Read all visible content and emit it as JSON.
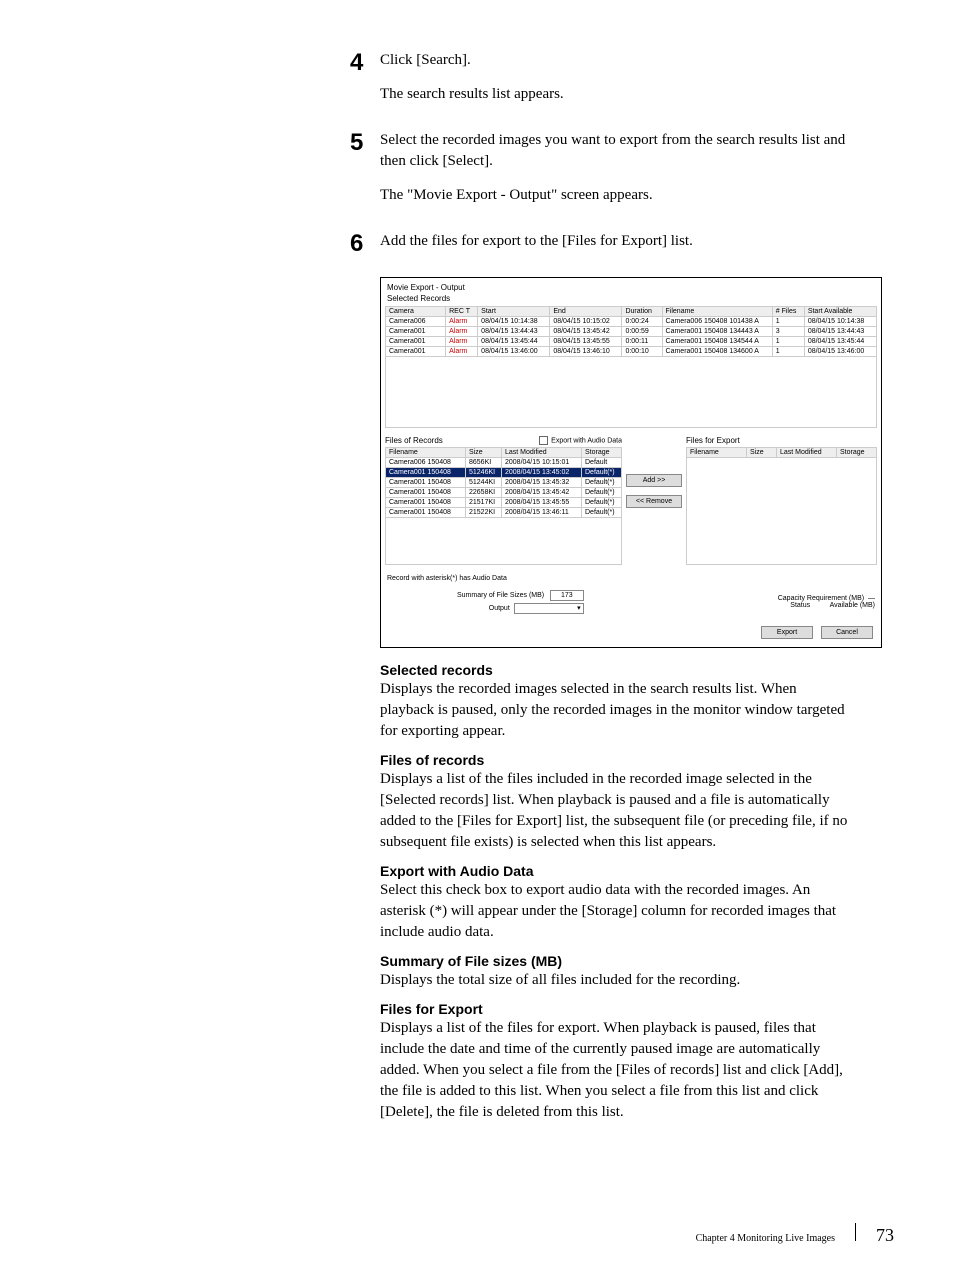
{
  "steps": {
    "s4": {
      "num": "4",
      "line1": "Click [Search].",
      "line2": "The search results list appears."
    },
    "s5": {
      "num": "5",
      "line1": "Select the recorded images you want to export from the search results list and then click [Select].",
      "line2": "The \"Movie Export - Output\" screen appears."
    },
    "s6": {
      "num": "6",
      "line1": "Add the files for export to the [Files for Export] list."
    }
  },
  "screenshot": {
    "window_title": "Movie Export - Output",
    "selected_records_label": "Selected Records",
    "top_headers": [
      "Camera",
      "REC T",
      "Start",
      "End",
      "Duration",
      "Filename",
      "# Files",
      "Start Available"
    ],
    "top_rows": [
      [
        "Camera006",
        "Alarm",
        "08/04/15 10:14:38",
        "08/04/15 10:15:02",
        "0:00:24",
        "Camera006 150408 101438 A",
        "1",
        "08/04/15 10:14:38"
      ],
      [
        "Camera001",
        "Alarm",
        "08/04/15 13:44:43",
        "08/04/15 13:45:42",
        "0:00:59",
        "Camera001 150408 134443 A",
        "3",
        "08/04/15 13:44:43"
      ],
      [
        "Camera001",
        "Alarm",
        "08/04/15 13:45:44",
        "08/04/15 13:45:55",
        "0:00:11",
        "Camera001 150408 134544 A",
        "1",
        "08/04/15 13:45:44"
      ],
      [
        "Camera001",
        "Alarm",
        "08/04/15 13:46:00",
        "08/04/15 13:46:10",
        "0:00:10",
        "Camera001 150408 134600 A",
        "1",
        "08/04/15 13:46:00"
      ]
    ],
    "files_of_records_label": "Files of Records",
    "export_audio_label": "Export with Audio Data",
    "files_for_export_label": "Files for Export",
    "left_headers": [
      "Filename",
      "Size",
      "Last Modified",
      "Storage"
    ],
    "left_rows": [
      [
        "Camera006 150408",
        "8656KI",
        "2008/04/15 10:15:01",
        "Default"
      ],
      [
        "Camera001 150408",
        "51246KI",
        "2008/04/15 13:45:02",
        "Default(*)"
      ],
      [
        "Camera001 150408",
        "51244KI",
        "2008/04/15 13:45:32",
        "Default(*)"
      ],
      [
        "Camera001 150408",
        "22658KI",
        "2008/04/15 13:45:42",
        "Default(*)"
      ],
      [
        "Camera001 150408",
        "21517KI",
        "2008/04/15 13:45:55",
        "Default(*)"
      ],
      [
        "Camera001 150408",
        "21522KI",
        "2008/04/15 13:46:11",
        "Default(*)"
      ]
    ],
    "selected_left_row_index": 1,
    "right_headers": [
      "Filename",
      "Size",
      "Last Modified",
      "Storage"
    ],
    "add_btn": "Add >>",
    "remove_btn": "<< Remove",
    "asterisk_note": "Record with asterisk(*) has Audio Data",
    "summary_label": "Summary of File Sizes (MB)",
    "summary_value": "173",
    "output_label": "Output",
    "status_label": "Status",
    "capacity_label": "Capacity Requirement (MB)",
    "capacity_value": "—",
    "available_label": "Available (MB)",
    "export_btn": "Export",
    "cancel_btn": "Cancel"
  },
  "descriptions": {
    "d1": {
      "title": "Selected records",
      "body": "Displays the recorded images selected in the search results list.\nWhen playback is paused, only the recorded images in the monitor window targeted for exporting appear."
    },
    "d2": {
      "title": "Files of records",
      "body": "Displays a list of the files included in the recorded image selected in the [Selected records] list.\nWhen playback is paused and a file is automatically added to the [Files for Export] list, the subsequent file (or preceding file, if no subsequent file exists) is selected when this list appears."
    },
    "d3": {
      "title": "Export with Audio Data",
      "body": "Select this check box to export audio data with the recorded images.\nAn asterisk (*) will appear under the [Storage] column for recorded images that include audio data."
    },
    "d4": {
      "title": "Summary of File sizes (MB)",
      "body": "Displays the total size of all files included for the recording."
    },
    "d5": {
      "title": "Files for Export",
      "body": "Displays a list of the files for export.\nWhen playback is paused, files that include the date and time of the currently paused image are automatically added.\nWhen you select a file from the [Files of records] list and click [Add], the file is added to this list.\nWhen you select a file from this list and click [Delete], the file is deleted from this list."
    }
  },
  "footer": {
    "chapter": "Chapter 4  Monitoring Live Images",
    "page": "73"
  }
}
